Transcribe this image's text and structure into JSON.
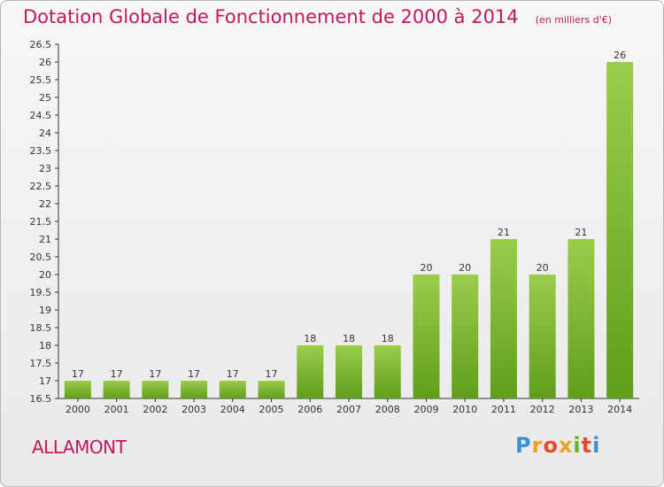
{
  "chart_data": {
    "type": "bar",
    "title": "Dotation Globale de Fonctionnement de 2000 à 2014",
    "subtitle": "(en milliers d'€)",
    "categories": [
      "2000",
      "2001",
      "2002",
      "2003",
      "2004",
      "2005",
      "2006",
      "2007",
      "2008",
      "2009",
      "2010",
      "2011",
      "2012",
      "2013",
      "2014"
    ],
    "values": [
      17,
      17,
      17,
      17,
      17,
      17,
      18,
      18,
      18,
      20,
      20,
      21,
      20,
      21,
      26
    ],
    "data_labels": [
      "17",
      "17",
      "17",
      "17",
      "17",
      "17",
      "18",
      "18",
      "18",
      "20",
      "20",
      "21",
      "20",
      "21",
      "26"
    ],
    "y_ticks": [
      "16.5",
      "17",
      "17.5",
      "18",
      "18.5",
      "19",
      "19.5",
      "20",
      "20.5",
      "21",
      "21.5",
      "22",
      "22.5",
      "23",
      "23.5",
      "24",
      "24.5",
      "25",
      "25.5",
      "26",
      "26.5"
    ],
    "ylim": [
      16.5,
      26.5
    ],
    "xlabel": "",
    "ylabel": "",
    "grid": false,
    "bar_color_top": "#9ccc4c",
    "bar_color_bottom": "#5f9e1c"
  },
  "commune": "ALLAMONT",
  "logo": {
    "letters": [
      "P",
      "r",
      "o",
      "x",
      "i",
      "t",
      "i"
    ],
    "colors": [
      "#3a8fd6",
      "#f0a020",
      "#e84a2a",
      "#f0a020",
      "#6ab030",
      "#e84a2a",
      "#3a8fd6"
    ]
  },
  "colors": {
    "title": "#c2185b",
    "axis": "#333333",
    "background_top": "#f7f7f7",
    "background_bottom": "#e9e9e9"
  }
}
